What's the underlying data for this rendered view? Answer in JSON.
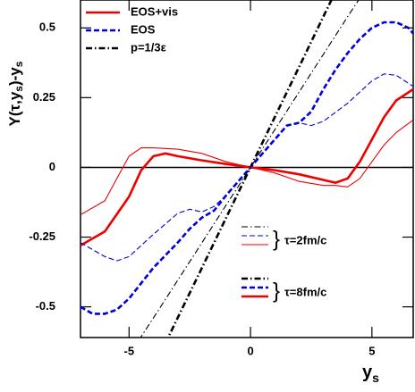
{
  "chart_data": {
    "type": "line",
    "y_label": [
      "Y(τ,y",
      "s",
      ")-y",
      "s"
    ],
    "x_label": [
      "y",
      "s"
    ],
    "xlim": [
      -7,
      6.7
    ],
    "xticks": [
      -5,
      0,
      5
    ],
    "ylim": [
      -0.61,
      0.6
    ],
    "yticks": [
      -0.5,
      -0.25,
      0,
      0.25,
      0.5
    ],
    "zero_line": true,
    "series": [
      {
        "name": "EOS+vis",
        "color": "#ee0000",
        "style": "solid",
        "weight": "thick",
        "x": [
          -7,
          -6,
          -5,
          -4.5,
          -4,
          -3.5,
          -3,
          -2,
          -1,
          0,
          1,
          2,
          3,
          3.5,
          4,
          4.5,
          5,
          5.5,
          6,
          6.7
        ],
        "values": [
          -0.28,
          -0.23,
          -0.105,
          -0.01,
          0.04,
          0.05,
          0.04,
          0.025,
          0.012,
          0,
          -0.01,
          -0.025,
          -0.045,
          -0.055,
          -0.04,
          0.02,
          0.1,
          0.18,
          0.24,
          0.28
        ]
      },
      {
        "name": "EOS",
        "color": "#0000dd",
        "style": "dashed",
        "weight": "thick",
        "x": [
          -7,
          -6.5,
          -6,
          -5.5,
          -5,
          -4,
          -3,
          -2.5,
          -2,
          -1.5,
          -1,
          -0.5,
          0,
          0.5,
          1,
          1.5,
          2,
          2.5,
          3,
          3.5,
          4,
          4.5,
          5,
          5.5,
          6,
          6.5,
          6.7
        ],
        "values": [
          -0.5,
          -0.525,
          -0.525,
          -0.51,
          -0.47,
          -0.36,
          -0.27,
          -0.22,
          -0.18,
          -0.155,
          -0.1,
          -0.05,
          0,
          0.05,
          0.1,
          0.15,
          0.16,
          0.2,
          0.28,
          0.35,
          0.41,
          0.46,
          0.5,
          0.52,
          0.52,
          0.5,
          0.48
        ]
      },
      {
        "name": "p=1/3ε",
        "color": "#000000",
        "style": "dashdot",
        "weight": "thick",
        "x": [
          -3.5,
          -3,
          -2,
          -1,
          0,
          1,
          2,
          3,
          3.5
        ],
        "values": [
          -0.63,
          -0.54,
          -0.36,
          -0.18,
          0,
          0.18,
          0.36,
          0.54,
          0.63
        ]
      },
      {
        "color": "#ee0000",
        "style": "solid",
        "weight": "thin",
        "x": [
          -7,
          -6,
          -5.5,
          -5,
          -4.5,
          -4,
          -3,
          -2,
          -1,
          0,
          1,
          2,
          3,
          3.5,
          4,
          4.5,
          5,
          5.5,
          6,
          6.7
        ],
        "values": [
          -0.17,
          -0.12,
          -0.04,
          0.04,
          0.07,
          0.07,
          0.065,
          0.05,
          0.02,
          0,
          -0.02,
          -0.05,
          -0.065,
          -0.065,
          -0.07,
          -0.04,
          0.02,
          0.08,
          0.125,
          0.17
        ]
      },
      {
        "color": "#0000dd",
        "style": "dashed",
        "weight": "thin",
        "x": [
          -7,
          -6,
          -5.5,
          -5,
          -4,
          -3,
          -2.5,
          -2,
          -1.5,
          -1,
          0,
          1,
          1.5,
          2,
          2.5,
          3,
          4,
          5,
          5.5,
          6,
          6.7
        ],
        "values": [
          -0.27,
          -0.32,
          -0.335,
          -0.32,
          -0.24,
          -0.165,
          -0.15,
          -0.16,
          -0.14,
          -0.1,
          0,
          0.1,
          0.15,
          0.16,
          0.15,
          0.165,
          0.23,
          0.31,
          0.335,
          0.33,
          0.29
        ]
      },
      {
        "color": "#000000",
        "style": "dashdot",
        "weight": "thin",
        "x": [
          -4.6,
          -4,
          -3,
          -2,
          -1,
          0,
          1,
          2,
          3,
          4,
          4.6
        ],
        "values": [
          -0.62,
          -0.54,
          -0.405,
          -0.27,
          -0.135,
          0,
          0.135,
          0.27,
          0.405,
          0.54,
          0.62
        ]
      }
    ],
    "annotations": [
      "τ=2fm/c",
      "τ=8fm/c"
    ]
  }
}
